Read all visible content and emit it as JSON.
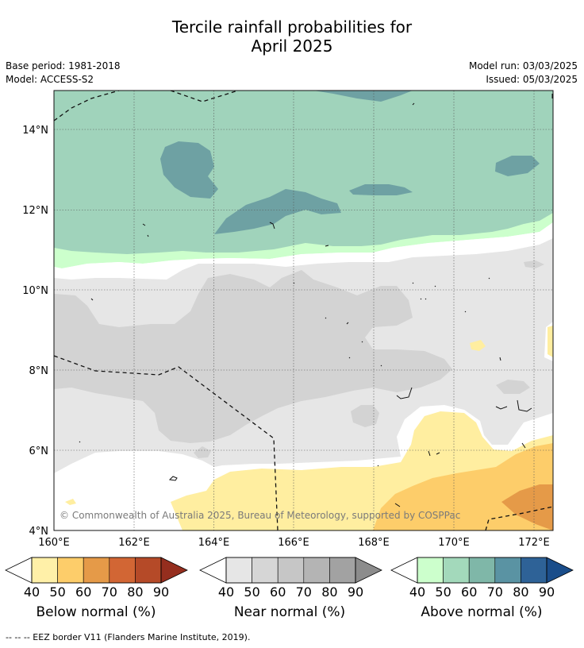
{
  "header": {
    "title_line1": "Tercile rainfall probabilities for",
    "title_line2": "April 2025",
    "base_period": "Base period: 1981-2018",
    "model": "Model: ACCESS-S2",
    "model_run": "Model run: 03/03/2025",
    "issued": "Issued: 05/03/2025"
  },
  "map": {
    "lat_labels": [
      "14°N",
      "12°N",
      "10°N",
      "8°N",
      "6°N",
      "4°N"
    ],
    "lon_labels": [
      "160°E",
      "162°E",
      "164°E",
      "166°E",
      "168°E",
      "170°E",
      "172°E"
    ],
    "copyright": "© Commonwealth of Australia 2025, Bureau of Meteorology, supported by COSPPac"
  },
  "colorbars": [
    {
      "label": "Below normal (%)",
      "ticks": [
        "40",
        "50",
        "60",
        "70",
        "80",
        "90"
      ],
      "colors": [
        "#fff0a8",
        "#fdcd6a",
        "#e59a48",
        "#d26634",
        "#b54a28",
        "#952e1e"
      ]
    },
    {
      "label": "Near normal (%)",
      "ticks": [
        "40",
        "50",
        "60",
        "70",
        "80",
        "90"
      ],
      "colors": [
        "#e6e6e6",
        "#d6d6d6",
        "#c6c6c6",
        "#b4b4b4",
        "#a2a2a2",
        "#8c8c8c"
      ]
    },
    {
      "label": "Above normal (%)",
      "ticks": [
        "40",
        "50",
        "60",
        "70",
        "80",
        "90"
      ],
      "colors": [
        "#ccffcc",
        "#a3d9bb",
        "#7fb7a8",
        "#5a93a3",
        "#2e6297",
        "#1a4d8a"
      ]
    }
  ],
  "footer": {
    "eez_note": "--  --  -- EEZ border V11 (Flanders Marine Institute, 2019)."
  }
}
